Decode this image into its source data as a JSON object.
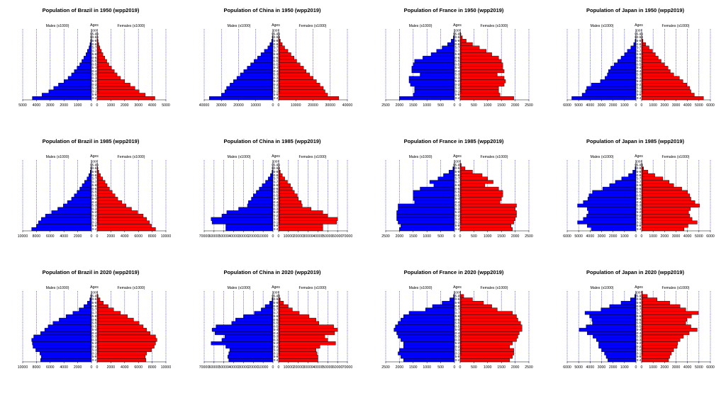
{
  "figure": {
    "males_label": "Males (x1000)",
    "females_label": "Females (x1000)",
    "ages_label": "Ages",
    "age_groups": [
      "0-4",
      "5-9",
      "10-14",
      "15-19",
      "20-24",
      "25-29",
      "30-34",
      "35-39",
      "40-44",
      "45-49",
      "50-54",
      "55-59",
      "60-64",
      "65-69",
      "70-74",
      "75-79",
      "80-84",
      "85-89",
      "90-94",
      "95-99",
      "100+"
    ],
    "colors": {
      "male": "#0000ff",
      "female": "#ff0000",
      "grid": "#0000cc",
      "text": "#000000"
    }
  },
  "chart_data": [
    {
      "type": "bar",
      "title": "Population of Brazil in 1950 (wpp2019)",
      "max": 5000,
      "ticks": [
        0,
        1000,
        2000,
        3000,
        4000,
        5000
      ],
      "males": [
        4300,
        3600,
        3100,
        2750,
        2400,
        2000,
        1700,
        1450,
        1250,
        1050,
        850,
        700,
        550,
        400,
        300,
        180,
        110,
        50,
        20,
        8,
        2
      ],
      "females": [
        4200,
        3500,
        3050,
        2750,
        2400,
        2000,
        1700,
        1450,
        1250,
        1050,
        850,
        700,
        560,
        420,
        310,
        200,
        120,
        60,
        25,
        10,
        3
      ]
    },
    {
      "type": "bar",
      "title": "Population of China in 1950 (wpp2019)",
      "max": 40000,
      "ticks": [
        0,
        10000,
        20000,
        30000,
        40000
      ],
      "males": [
        37000,
        30000,
        28000,
        27000,
        25000,
        23000,
        21000,
        19000,
        17000,
        15000,
        13000,
        11000,
        9000,
        7000,
        5000,
        3000,
        1800,
        800,
        250,
        60,
        10
      ],
      "females": [
        35000,
        28500,
        27000,
        26000,
        24000,
        22000,
        20000,
        18000,
        16000,
        14500,
        12500,
        10500,
        9000,
        7200,
        5400,
        3500,
        2100,
        1000,
        350,
        90,
        15
      ]
    },
    {
      "type": "bar",
      "title": "Population of France in 1950 (wpp2019)",
      "max": 2500,
      "ticks": [
        0,
        500,
        1000,
        1500,
        2000,
        2500
      ],
      "males": [
        2000,
        1500,
        1450,
        1450,
        1600,
        1650,
        1650,
        1250,
        1550,
        1550,
        1500,
        1450,
        1150,
        850,
        650,
        450,
        250,
        120,
        40,
        10,
        2
      ],
      "females": [
        1950,
        1450,
        1400,
        1400,
        1600,
        1650,
        1600,
        1350,
        1600,
        1550,
        1550,
        1500,
        1400,
        1150,
        950,
        700,
        450,
        220,
        80,
        20,
        3
      ]
    },
    {
      "type": "bar",
      "title": "Population of Japan in 1950 (wpp2019)",
      "max": 6000,
      "ticks": [
        0,
        1000,
        2000,
        3000,
        4000,
        5000,
        6000
      ],
      "males": [
        5600,
        4700,
        4400,
        4300,
        3900,
        3100,
        2700,
        2500,
        2400,
        2200,
        1900,
        1600,
        1300,
        1000,
        750,
        450,
        200,
        70,
        15,
        3,
        1
      ],
      "females": [
        5400,
        4600,
        4300,
        4200,
        3950,
        3600,
        3300,
        2800,
        2500,
        2300,
        2000,
        1700,
        1450,
        1200,
        950,
        650,
        350,
        120,
        30,
        5,
        1
      ]
    },
    {
      "type": "bar",
      "title": "Population of Brazil in 1985 (wpp2019)",
      "max": 10000,
      "ticks": [
        0,
        2000,
        4000,
        6000,
        8000,
        10000
      ],
      "males": [
        8700,
        8000,
        7700,
        7300,
        6700,
        5800,
        4900,
        4100,
        3500,
        2900,
        2500,
        2100,
        1700,
        1350,
        1000,
        650,
        380,
        180,
        60,
        15,
        3
      ],
      "females": [
        8500,
        7900,
        7600,
        7200,
        6700,
        5900,
        5000,
        4200,
        3600,
        3000,
        2600,
        2200,
        1800,
        1450,
        1150,
        800,
        480,
        240,
        90,
        20,
        4
      ]
    },
    {
      "type": "bar",
      "title": "Population of China in 1985 (wpp2019)",
      "max": 70000,
      "ticks": [
        0,
        10000,
        20000,
        30000,
        40000,
        50000,
        60000,
        70000
      ],
      "males": [
        48000,
        48000,
        62000,
        63000,
        52000,
        47000,
        35000,
        26000,
        25000,
        22000,
        20000,
        17000,
        14000,
        11000,
        7600,
        4800,
        2600,
        1000,
        260,
        40,
        5
      ],
      "females": [
        45000,
        45000,
        59000,
        60000,
        50000,
        45000,
        33000,
        24000,
        23000,
        20000,
        19000,
        16000,
        14000,
        12000,
        9000,
        6200,
        3800,
        1700,
        500,
        80,
        10
      ]
    },
    {
      "type": "bar",
      "title": "Population of France in 1985 (wpp2019)",
      "max": 2500,
      "ticks": [
        0,
        500,
        1000,
        1500,
        2000,
        2500
      ],
      "males": [
        2000,
        1950,
        2050,
        2100,
        2100,
        2100,
        2050,
        2050,
        1450,
        1500,
        1500,
        1500,
        1250,
        750,
        900,
        600,
        400,
        200,
        60,
        10,
        2
      ],
      "females": [
        1900,
        1850,
        1950,
        2000,
        2050,
        2050,
        2000,
        2050,
        1450,
        1500,
        1550,
        1550,
        1400,
        900,
        1200,
        1000,
        800,
        450,
        180,
        40,
        5
      ]
    },
    {
      "type": "bar",
      "title": "Population of Japan in 1985 (wpp2019)",
      "max": 6000,
      "ticks": [
        0,
        1000,
        2000,
        3000,
        4000,
        5000,
        6000
      ],
      "males": [
        3900,
        4250,
        5100,
        4600,
        4300,
        4150,
        4250,
        5100,
        4600,
        4200,
        4100,
        3800,
        2900,
        2300,
        1800,
        1250,
        650,
        280,
        80,
        15,
        2
      ],
      "females": [
        3700,
        4050,
        4850,
        4400,
        4200,
        4100,
        4250,
        5050,
        4650,
        4300,
        4200,
        4000,
        3500,
        2800,
        2400,
        1850,
        1150,
        550,
        170,
        35,
        5
      ]
    },
    {
      "type": "bar",
      "title": "Population of Brazil in 2020 (wpp2019)",
      "max": 10000,
      "ticks": [
        0,
        2000,
        4000,
        6000,
        8000,
        10000
      ],
      "males": [
        7400,
        7300,
        7500,
        8100,
        8500,
        8600,
        8700,
        8400,
        7400,
        6800,
        6300,
        5600,
        4700,
        3700,
        2700,
        1800,
        1100,
        600,
        250,
        70,
        10
      ],
      "females": [
        7100,
        7000,
        7200,
        7900,
        8300,
        8500,
        8700,
        8500,
        7700,
        7200,
        6700,
        6100,
        5300,
        4400,
        3400,
        2400,
        1600,
        900,
        420,
        140,
        25
      ]
    },
    {
      "type": "bar",
      "title": "Population of China in 2020 (wpp2019)",
      "max": 70000,
      "ticks": [
        0,
        10000,
        20000,
        30000,
        40000,
        50000,
        60000,
        70000
      ],
      "males": [
        45000,
        46000,
        45000,
        44000,
        48000,
        63000,
        52000,
        49000,
        59000,
        62000,
        58000,
        42000,
        38000,
        30000,
        19000,
        12000,
        8000,
        3500,
        900,
        150,
        20
      ],
      "females": [
        40000,
        40000,
        39000,
        38000,
        42000,
        58000,
        50000,
        47000,
        57000,
        60000,
        56000,
        41000,
        38000,
        31000,
        21000,
        14000,
        9600,
        5000,
        1600,
        300,
        40
      ]
    },
    {
      "type": "bar",
      "title": "Population of France in 2020 (wpp2019)",
      "max": 2500,
      "ticks": [
        0,
        500,
        1000,
        1500,
        2000,
        2500
      ],
      "males": [
        1850,
        1950,
        2050,
        2000,
        1850,
        1850,
        1950,
        2050,
        2100,
        2200,
        2150,
        2050,
        1950,
        1850,
        1650,
        1050,
        800,
        450,
        170,
        35,
        4
      ],
      "females": [
        1800,
        1900,
        1950,
        1950,
        1800,
        1900,
        2050,
        2100,
        2150,
        2250,
        2250,
        2200,
        2100,
        2050,
        1900,
        1350,
        1150,
        850,
        450,
        130,
        15
      ]
    },
    {
      "type": "bar",
      "title": "Population of Japan in 2020 (wpp2019)",
      "max": 6000,
      "ticks": [
        0,
        1000,
        2000,
        3000,
        4000,
        5000,
        6000
      ],
      "males": [
        2450,
        2600,
        2750,
        3000,
        3250,
        3250,
        3450,
        3750,
        4250,
        4950,
        4350,
        3800,
        3850,
        4050,
        4450,
        3050,
        2300,
        1300,
        480,
        110,
        10
      ],
      "females": [
        2350,
        2450,
        2600,
        2800,
        3100,
        3150,
        3350,
        3650,
        4150,
        4850,
        4300,
        3850,
        3950,
        4350,
        4950,
        3850,
        3350,
        2450,
        1350,
        500,
        80
      ]
    }
  ]
}
